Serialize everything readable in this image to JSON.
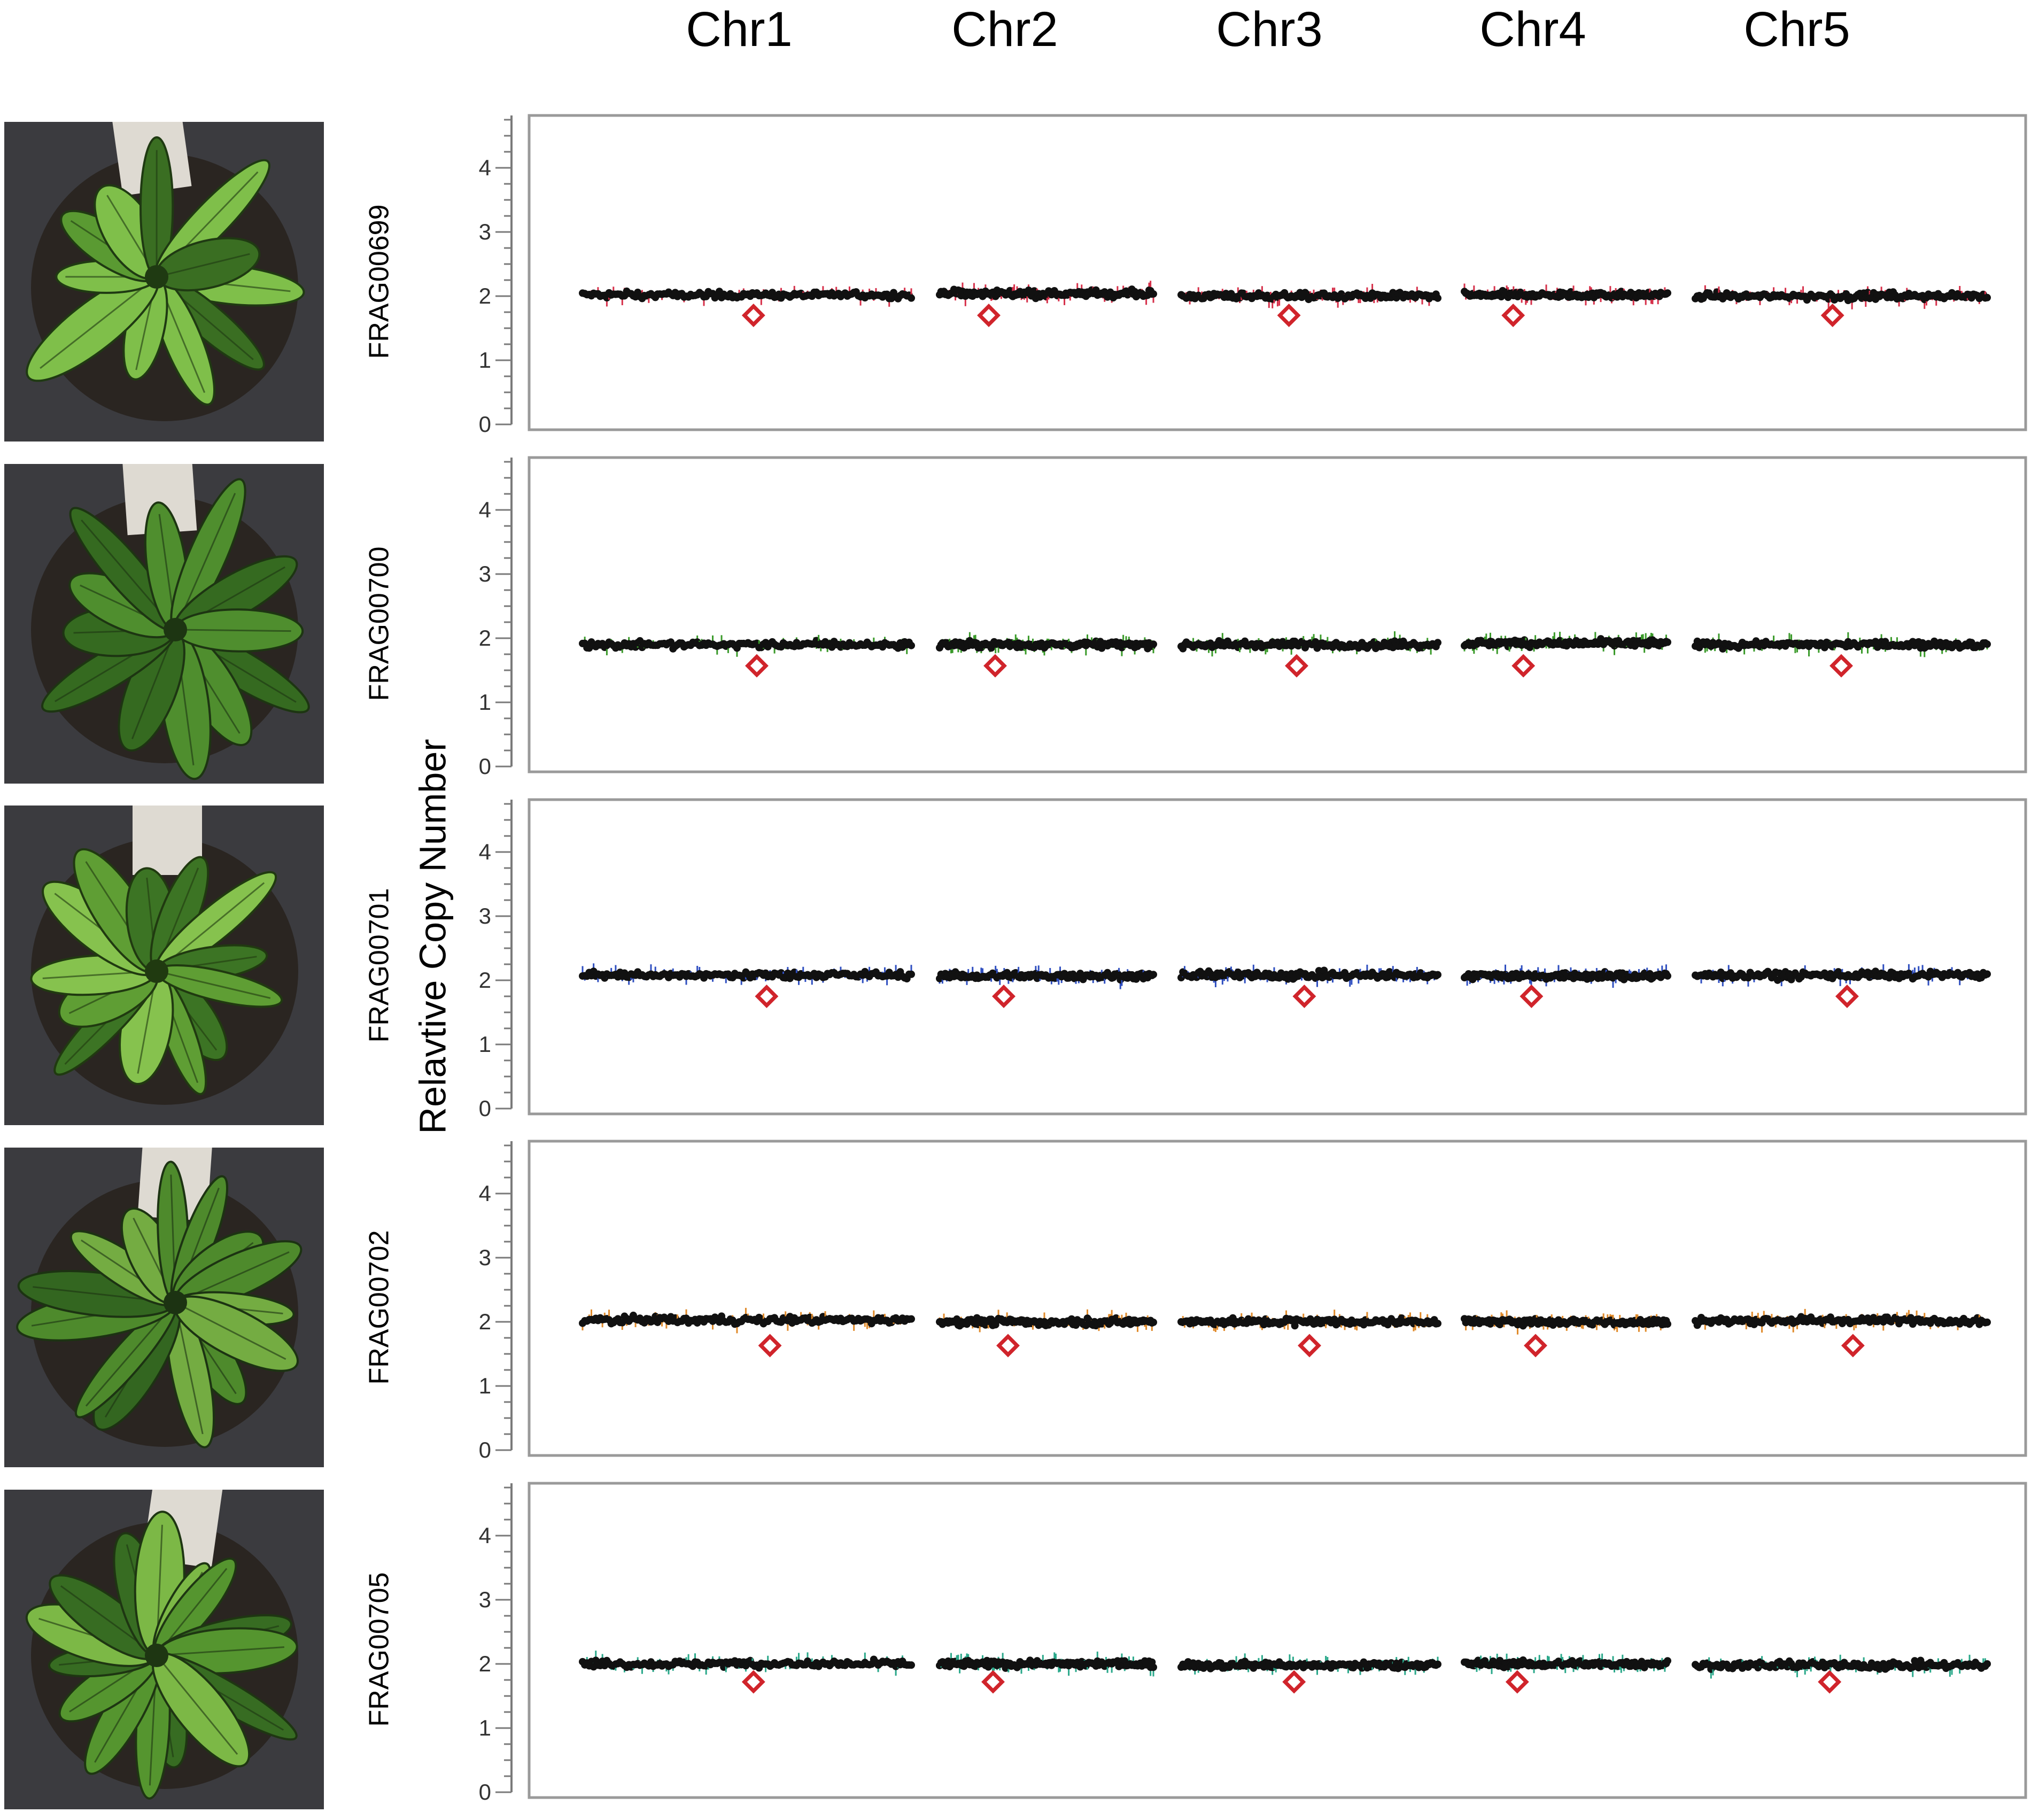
{
  "chart_data": {
    "type": "scatter",
    "title": "",
    "ylabel": "Relavtive Copy Number",
    "ylim": [
      0,
      5
    ],
    "yticks": [
      0,
      1,
      2,
      3,
      4
    ],
    "grid": false,
    "chromosomes": [
      "Chr1",
      "Chr2",
      "Chr3",
      "Chr4",
      "Chr5"
    ],
    "marker_color": "#d0242b",
    "point_color": "#111111",
    "panels": [
      {
        "sample": "FRAG00699",
        "color": "#d6304a",
        "level": [
          2.02,
          2.04,
          2.0,
          2.02,
          2.0
        ],
        "marker_y": 1.7,
        "marker_pos": [
          0.52,
          0.23,
          0.42,
          0.24,
          0.47
        ]
      },
      {
        "sample": "FRAG00700",
        "color": "#3a9a2a",
        "level": [
          1.9,
          1.9,
          1.9,
          1.92,
          1.9
        ],
        "marker_y": 1.57,
        "marker_pos": [
          0.53,
          0.26,
          0.45,
          0.29,
          0.5
        ]
      },
      {
        "sample": "FRAG00701",
        "color": "#2f4fc0",
        "level": [
          2.08,
          2.07,
          2.08,
          2.07,
          2.08
        ],
        "marker_y": 1.75,
        "marker_pos": [
          0.56,
          0.3,
          0.48,
          0.33,
          0.52
        ]
      },
      {
        "sample": "FRAG00702",
        "color": "#e08a2a",
        "level": [
          2.03,
          2.0,
          2.0,
          2.0,
          2.02
        ],
        "marker_y": 1.63,
        "marker_pos": [
          0.57,
          0.32,
          0.5,
          0.35,
          0.54
        ]
      },
      {
        "sample": "FRAG00705",
        "color": "#2aa88a",
        "level": [
          2.0,
          2.0,
          1.98,
          2.0,
          1.98
        ],
        "marker_y": 1.72,
        "marker_pos": [
          0.52,
          0.25,
          0.44,
          0.26,
          0.46
        ]
      }
    ]
  },
  "photos": [
    {
      "sample": "FRAG00699",
      "scene": "rosette-plant-photo"
    },
    {
      "sample": "FRAG00700",
      "scene": "rosette-plant-photo"
    },
    {
      "sample": "FRAG00701",
      "scene": "rosette-plant-photo"
    },
    {
      "sample": "FRAG00702",
      "scene": "rosette-plant-photo"
    },
    {
      "sample": "FRAG00705",
      "scene": "rosette-plant-photo"
    }
  ]
}
